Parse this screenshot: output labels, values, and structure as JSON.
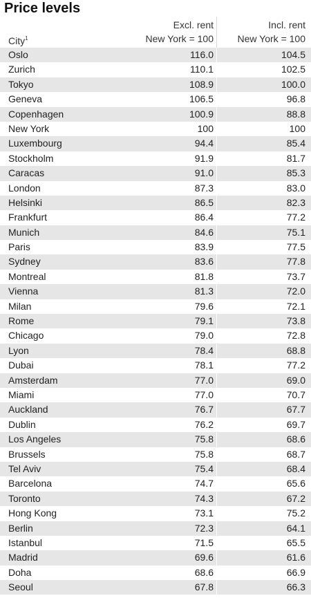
{
  "title": "Price levels",
  "header": {
    "city": "City",
    "city_footnote": "1",
    "excl_line1": "Excl. rent",
    "excl_line2": "New York = 100",
    "incl_line1": "Incl. rent",
    "incl_line2": "New York = 100"
  },
  "rows": [
    {
      "city": "Oslo",
      "excl": "116.0",
      "incl": "104.5"
    },
    {
      "city": "Zurich",
      "excl": "110.1",
      "incl": "102.5"
    },
    {
      "city": "Tokyo",
      "excl": "108.9",
      "incl": "100.0"
    },
    {
      "city": "Geneva",
      "excl": "106.5",
      "incl": "96.8"
    },
    {
      "city": "Copenhagen",
      "excl": "100.9",
      "incl": "88.8"
    },
    {
      "city": "New York",
      "excl": "100",
      "incl": "100"
    },
    {
      "city": "Luxembourg",
      "excl": "94.4",
      "incl": "85.4"
    },
    {
      "city": "Stockholm",
      "excl": "91.9",
      "incl": "81.7"
    },
    {
      "city": "Caracas",
      "excl": "91.0",
      "incl": "85.3"
    },
    {
      "city": "London",
      "excl": "87.3",
      "incl": "83.0"
    },
    {
      "city": "Helsinki",
      "excl": "86.5",
      "incl": "82.3"
    },
    {
      "city": "Frankfurt",
      "excl": "86.4",
      "incl": "77.2"
    },
    {
      "city": "Munich",
      "excl": "84.6",
      "incl": "75.1"
    },
    {
      "city": "Paris",
      "excl": "83.9",
      "incl": "77.5"
    },
    {
      "city": "Sydney",
      "excl": "83.6",
      "incl": "77.8"
    },
    {
      "city": "Montreal",
      "excl": "81.8",
      "incl": "73.7"
    },
    {
      "city": "Vienna",
      "excl": "81.3",
      "incl": "72.0"
    },
    {
      "city": "Milan",
      "excl": "79.6",
      "incl": "72.1"
    },
    {
      "city": "Rome",
      "excl": "79.1",
      "incl": "73.8"
    },
    {
      "city": "Chicago",
      "excl": "79.0",
      "incl": "72.8"
    },
    {
      "city": "Lyon",
      "excl": "78.4",
      "incl": "68.8"
    },
    {
      "city": "Dubai",
      "excl": "78.1",
      "incl": "77.2"
    },
    {
      "city": "Amsterdam",
      "excl": "77.0",
      "incl": "69.0"
    },
    {
      "city": "Miami",
      "excl": "77.0",
      "incl": "70.7"
    },
    {
      "city": "Auckland",
      "excl": "76.7",
      "incl": "67.7"
    },
    {
      "city": "Dublin",
      "excl": "76.2",
      "incl": "69.7"
    },
    {
      "city": "Los Angeles",
      "excl": "75.8",
      "incl": "68.6"
    },
    {
      "city": "Brussels",
      "excl": "75.8",
      "incl": "68.7"
    },
    {
      "city": "Tel Aviv",
      "excl": "75.4",
      "incl": "68.4"
    },
    {
      "city": "Barcelona",
      "excl": "74.7",
      "incl": "65.6"
    },
    {
      "city": "Toronto",
      "excl": "74.3",
      "incl": "67.2"
    },
    {
      "city": "Hong Kong",
      "excl": "73.1",
      "incl": "75.2"
    },
    {
      "city": "Berlin",
      "excl": "72.3",
      "incl": "64.1"
    },
    {
      "city": "Istanbul",
      "excl": "71.5",
      "incl": "65.5"
    },
    {
      "city": "Madrid",
      "excl": "69.6",
      "incl": "61.6"
    },
    {
      "city": "Doha",
      "excl": "68.6",
      "incl": "66.9"
    },
    {
      "city": "Seoul",
      "excl": "67.8",
      "incl": "66.3"
    }
  ]
}
